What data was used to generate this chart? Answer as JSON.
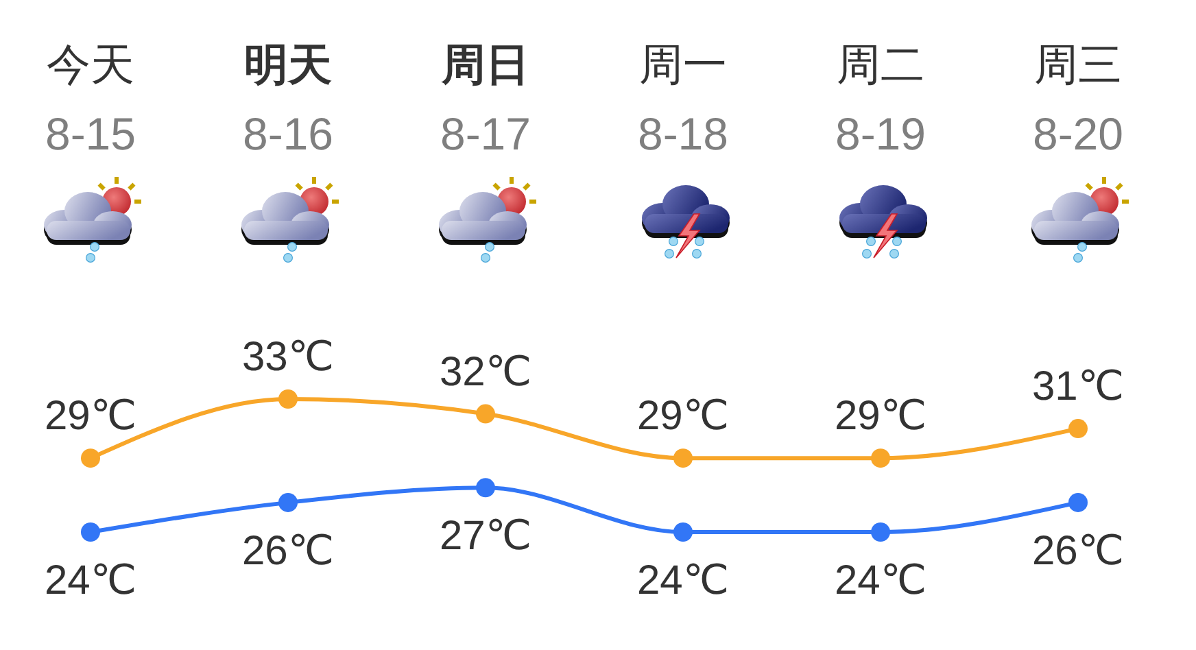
{
  "chart_data": {
    "type": "line",
    "categories": [
      "今天\n8-15",
      "明天\n8-16",
      "周日\n8-17",
      "周一\n8-18",
      "周二\n8-19",
      "周三\n8-20"
    ],
    "series": [
      {
        "color": "#f8a629",
        "values": [
          29,
          33,
          32,
          29,
          29,
          31
        ],
        "value_labels": [
          "29℃",
          "33℃",
          "32℃",
          "29℃",
          "29℃",
          "31℃"
        ]
      },
      {
        "color": "#3276f6",
        "values": [
          24,
          26,
          27,
          24,
          24,
          26
        ],
        "value_labels": [
          "24℃",
          "26℃",
          "27℃",
          "24℃",
          "24℃",
          "26℃"
        ]
      }
    ],
    "tick_labels": "x",
    "marker": "circle"
  }
}
